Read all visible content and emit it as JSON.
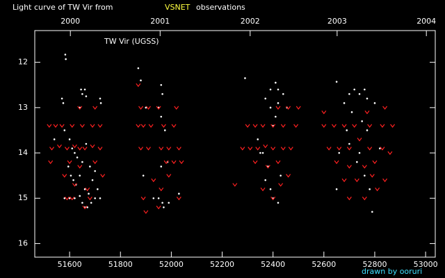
{
  "chart_data": {
    "type": "scatter",
    "title": "Light curve of TW Vir from",
    "title_highlight": "VSNET",
    "title_suffix": "observations",
    "annotation": "TW Vir (UGSS)",
    "credit": "drawn by ooruri",
    "xlim": [
      51463,
      53038
    ],
    "xticks": [
      51600,
      51800,
      52000,
      52200,
      52400,
      52600,
      52800,
      53000
    ],
    "x2ticks": [
      {
        "value": 51603,
        "label": "2000"
      },
      {
        "value": 51956,
        "label": "2001"
      },
      {
        "value": 52310,
        "label": "2002"
      },
      {
        "value": 52652,
        "label": "2003"
      },
      {
        "value": 53003,
        "label": "2004"
      }
    ],
    "ylim": [
      11.3,
      16.3
    ],
    "y_inverted": true,
    "yticks": [
      12,
      13,
      14,
      15,
      16
    ],
    "series": [
      {
        "marker": "dot",
        "color": "#ffffff",
        "x": [
          51583,
          51585,
          51570,
          51575,
          51645,
          51660,
          51650,
          51665,
          51640,
          51720,
          51723,
          51540,
          51580,
          51600,
          51610,
          51620,
          51630,
          51650,
          51665,
          51680,
          51700,
          51595,
          51605,
          51615,
          51625,
          51640,
          51660,
          51675,
          51690,
          51710,
          51720,
          51580,
          51600,
          51650,
          51660,
          51670,
          51685,
          51700,
          51620,
          51640,
          51870,
          51880,
          51960,
          51965,
          51900,
          51950,
          51960,
          51975,
          51960,
          51985,
          51890,
          51930,
          51950,
          51965,
          51970,
          51990,
          52030,
          52290,
          52390,
          52410,
          52420,
          52440,
          52370,
          52390,
          52420,
          52455,
          52410,
          52400,
          52340,
          52360,
          52380,
          52370,
          52390,
          52400,
          52420,
          52430,
          52350,
          52650,
          52700,
          52720,
          52740,
          52760,
          52770,
          52800,
          52680,
          52710,
          52750,
          52770,
          52690,
          52700,
          52740,
          52730,
          52760,
          52780,
          52650,
          52790,
          52820,
          52660
        ],
        "values": [
          11.83,
          11.93,
          12.8,
          12.9,
          12.6,
          12.6,
          12.7,
          12.75,
          13.0,
          12.8,
          12.9,
          13.7,
          13.5,
          13.7,
          13.9,
          14.0,
          14.1,
          14.2,
          13.8,
          14.3,
          14.4,
          14.3,
          14.5,
          14.6,
          14.7,
          14.5,
          14.8,
          14.9,
          14.6,
          14.8,
          15.0,
          15.0,
          15.0,
          15.1,
          15.2,
          15.2,
          15.1,
          15.0,
          15.0,
          14.95,
          12.13,
          12.4,
          12.5,
          12.7,
          13.0,
          13.0,
          13.2,
          13.5,
          14.3,
          14.2,
          14.5,
          15.0,
          15.0,
          15.1,
          15.2,
          15.1,
          14.9,
          12.35,
          12.6,
          12.45,
          12.6,
          12.7,
          12.8,
          13.0,
          12.9,
          13.0,
          13.2,
          13.4,
          13.7,
          14.0,
          14.3,
          14.6,
          14.8,
          15.0,
          15.1,
          14.5,
          14.0,
          12.43,
          12.7,
          12.6,
          12.7,
          12.6,
          12.8,
          12.9,
          12.9,
          13.1,
          13.3,
          13.5,
          13.5,
          13.8,
          14.0,
          14.2,
          14.5,
          14.8,
          14.8,
          15.3,
          13.9,
          14.0
        ]
      },
      {
        "marker": "v",
        "color": "#ff2020",
        "x": [
          51520,
          51545,
          51570,
          51610,
          51650,
          51690,
          51720,
          51530,
          51560,
          51590,
          51620,
          51640,
          51660,
          51690,
          51720,
          51525,
          51600,
          51640,
          51700,
          51730,
          51580,
          51620,
          51670,
          51590,
          51610,
          51680,
          51640,
          51700,
          51660,
          51870,
          51880,
          51910,
          51950,
          52020,
          51870,
          51890,
          51920,
          51970,
          52010,
          51880,
          51910,
          51960,
          51990,
          52030,
          51980,
          52010,
          52040,
          51930,
          51960,
          51990,
          51890,
          51950,
          52030,
          51900,
          52250,
          52280,
          52310,
          52340,
          52370,
          52400,
          52440,
          52470,
          52300,
          52330,
          52360,
          52400,
          52440,
          52490,
          52420,
          52460,
          52500,
          52330,
          52380,
          52420,
          52460,
          52360,
          52400,
          52430,
          52600,
          52640,
          52680,
          52720,
          52780,
          52830,
          52870,
          52620,
          52660,
          52700,
          52740,
          52780,
          52830,
          52860,
          52650,
          52700,
          52760,
          52800,
          52840,
          52680,
          52730,
          52790,
          52700,
          52760,
          52810,
          52600,
          52770,
          52840
        ],
        "values": [
          13.4,
          13.4,
          13.4,
          13.4,
          13.4,
          13.4,
          13.4,
          13.9,
          13.85,
          13.9,
          13.85,
          13.9,
          13.9,
          13.85,
          13.9,
          14.2,
          14.2,
          14.3,
          14.2,
          14.5,
          14.5,
          14.7,
          14.8,
          15.0,
          15.0,
          15.0,
          13.0,
          13.0,
          15.2,
          12.5,
          13.0,
          13.0,
          13.0,
          13.0,
          13.4,
          13.4,
          13.4,
          13.4,
          13.4,
          13.9,
          13.9,
          13.9,
          13.9,
          13.9,
          14.2,
          14.2,
          14.2,
          14.6,
          14.8,
          14.5,
          15.0,
          15.2,
          15.0,
          15.3,
          14.7,
          13.9,
          13.9,
          13.9,
          13.85,
          13.9,
          13.9,
          13.9,
          13.4,
          13.4,
          13.4,
          13.4,
          13.4,
          13.4,
          13.0,
          13.0,
          13.0,
          14.2,
          14.3,
          14.2,
          14.5,
          14.8,
          15.0,
          14.7,
          13.4,
          13.4,
          13.4,
          13.4,
          13.4,
          13.4,
          13.4,
          13.9,
          13.9,
          13.9,
          13.7,
          13.9,
          13.9,
          14.0,
          14.2,
          14.3,
          14.3,
          14.2,
          14.6,
          14.6,
          14.6,
          14.5,
          15.0,
          15.0,
          14.8,
          13.1,
          13.1,
          13.0
        ]
      }
    ]
  }
}
